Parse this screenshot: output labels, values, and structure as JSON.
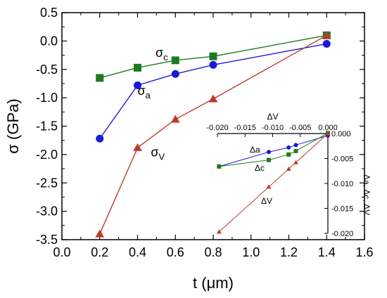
{
  "chart_data": [
    {
      "type": "line",
      "xlabel": "t (μm)",
      "ylabel": "σ (GPa)",
      "xlim": [
        0.0,
        1.6
      ],
      "ylim": [
        -3.5,
        0.5
      ],
      "xticks": [
        "0.0",
        "0.2",
        "0.4",
        "0.6",
        "0.8",
        "1.0",
        "1.2",
        "1.4",
        "1.6"
      ],
      "yticks": [
        "0.5",
        "0.0",
        "-0.5",
        "-1.0",
        "-1.5",
        "-2.0",
        "-2.5",
        "-3.0",
        "-3.5"
      ],
      "series": [
        {
          "name": "σc",
          "base": "σ",
          "sub": "c",
          "color": "#1e7a1e",
          "marker": "square",
          "x": [
            0.2,
            0.4,
            0.6,
            0.8,
            1.4
          ],
          "y": [
            -0.65,
            -0.47,
            -0.34,
            -0.27,
            0.1
          ]
        },
        {
          "name": "σa",
          "base": "σ",
          "sub": "a",
          "color": "#1a1ad6",
          "marker": "circle",
          "x": [
            0.2,
            0.4,
            0.6,
            0.8,
            1.4
          ],
          "y": [
            -1.72,
            -0.78,
            -0.58,
            -0.42,
            -0.05
          ]
        },
        {
          "name": "σV",
          "base": "σ",
          "sub": "V",
          "color": "#c0392b",
          "marker": "triangle",
          "x": [
            0.2,
            0.4,
            0.6,
            0.8,
            1.4
          ],
          "y": [
            -3.4,
            -1.88,
            -1.38,
            -1.02,
            0.1
          ]
        }
      ]
    },
    {
      "type": "line",
      "xlabel": "ΔV",
      "ylabel": "Δa, Δc, ΔV",
      "xlim": [
        -0.02,
        0.0
      ],
      "ylim": [
        -0.02,
        0.0
      ],
      "xticks": [
        "-0.020",
        "-0.015",
        "-0.010",
        "-0.005",
        "0.000"
      ],
      "yticks": [
        "0.000",
        "-0.005",
        "-0.010",
        "-0.015",
        "-0.020"
      ],
      "series": [
        {
          "name": "Δa",
          "color": "#1a1ad6",
          "marker": "circle",
          "x": [
            -0.0197,
            -0.0107,
            -0.0071,
            -0.0058,
            0.0
          ],
          "y": [
            -0.0066,
            -0.0037,
            -0.0028,
            -0.0023,
            -0.0004
          ]
        },
        {
          "name": "Δc",
          "color": "#1e7a1e",
          "marker": "square",
          "x": [
            -0.0197,
            -0.0107,
            -0.0071,
            -0.0058,
            0.0
          ],
          "y": [
            -0.0066,
            -0.0053,
            -0.0042,
            -0.0035,
            0.0001
          ]
        },
        {
          "name": "ΔV",
          "color": "#c0392b",
          "marker": "triangle",
          "x": [
            -0.0197,
            -0.0107,
            -0.0071,
            -0.0058,
            0.0
          ],
          "y": [
            -0.0197,
            -0.0107,
            -0.0071,
            -0.0058,
            0.0
          ]
        }
      ]
    }
  ]
}
